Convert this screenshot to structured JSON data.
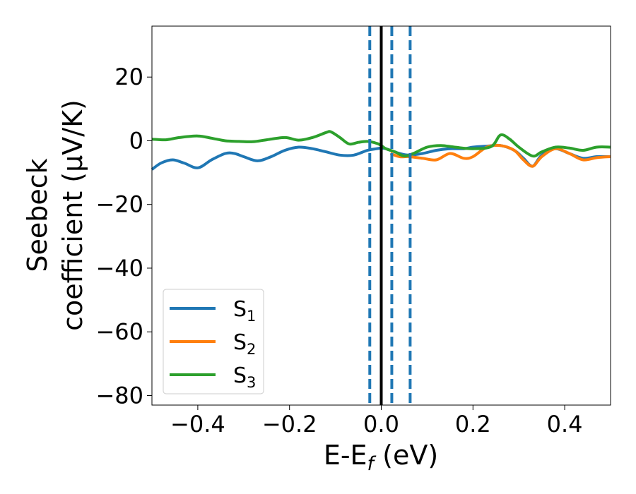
{
  "chart_data": {
    "type": "line",
    "title": "",
    "xlabel_main": "E-E",
    "xlabel_sub": "f",
    "xlabel_tail": " (eV)",
    "ylabel_line1": "Seebeck",
    "ylabel_line2": "coefficient  (μV/K)",
    "xlim": [
      -0.5,
      0.5
    ],
    "ylim": [
      -83,
      36
    ],
    "xticks": [
      -0.4,
      -0.2,
      0.0,
      0.2,
      0.4
    ],
    "xtick_labels": [
      "−0.4",
      "−0.2",
      "0.0",
      "0.2",
      "0.4"
    ],
    "yticks": [
      20,
      0,
      -20,
      -40,
      -60,
      -80
    ],
    "ytick_labels": [
      "20",
      "0",
      "−20",
      "−40",
      "−60",
      "−80"
    ],
    "vlines": [
      {
        "x": -0.025,
        "style": "dashed",
        "color": "#1f77b4"
      },
      {
        "x": 0.0,
        "style": "solid",
        "color": "#000000"
      },
      {
        "x": 0.023,
        "style": "dashed",
        "color": "#1f77b4"
      },
      {
        "x": 0.063,
        "style": "dashed",
        "color": "#1f77b4"
      }
    ],
    "legend_position": "lower-left",
    "series": [
      {
        "name": "S",
        "sub": "1",
        "color": "#1f77b4",
        "x": [
          -0.5,
          -0.48,
          -0.455,
          -0.43,
          -0.4,
          -0.37,
          -0.34,
          -0.32,
          -0.3,
          -0.27,
          -0.24,
          -0.21,
          -0.18,
          -0.15,
          -0.12,
          -0.09,
          -0.06,
          -0.03,
          -0.01,
          0.0,
          0.01,
          0.02,
          0.04,
          0.06,
          0.09,
          0.12,
          0.15,
          0.18,
          0.2,
          0.23,
          0.26,
          0.29,
          0.31,
          0.33,
          0.35,
          0.38,
          0.41,
          0.44,
          0.47,
          0.5
        ],
        "y": [
          -9,
          -7,
          -6,
          -7,
          -8.5,
          -6,
          -4,
          -4,
          -5,
          -6.3,
          -5,
          -3,
          -2,
          -2.5,
          -3.5,
          -4.5,
          -4.5,
          -3,
          -2.5,
          -2.3,
          -2.5,
          -3,
          -4,
          -4.5,
          -4,
          -3,
          -2.5,
          -2.5,
          -2,
          -1.7,
          -1.5,
          -3,
          -5.5,
          -8,
          -4.5,
          -2.5,
          -4,
          -5.5,
          -5,
          -5
        ]
      },
      {
        "name": "S",
        "sub": "2",
        "color": "#ff7f0e",
        "x": [
          0.02,
          0.04,
          0.06,
          0.09,
          0.12,
          0.15,
          0.18,
          0.2,
          0.23,
          0.26,
          0.29,
          0.31,
          0.33,
          0.35,
          0.38,
          0.41,
          0.44,
          0.47,
          0.5
        ],
        "y": [
          -4,
          -5,
          -5,
          -5.5,
          -6,
          -4,
          -5.5,
          -5,
          -2,
          -1.5,
          -3,
          -6,
          -8,
          -5,
          -2.5,
          -4,
          -6,
          -5.3,
          -5
        ]
      },
      {
        "name": "S",
        "sub": "3",
        "color": "#2ca02c",
        "x": [
          -0.5,
          -0.47,
          -0.44,
          -0.4,
          -0.37,
          -0.34,
          -0.31,
          -0.28,
          -0.25,
          -0.21,
          -0.18,
          -0.15,
          -0.12,
          -0.11,
          -0.09,
          -0.07,
          -0.05,
          -0.03,
          -0.01,
          0.0,
          0.01,
          0.03,
          0.05,
          0.07,
          0.1,
          0.13,
          0.16,
          0.2,
          0.24,
          0.26,
          0.28,
          0.3,
          0.33,
          0.35,
          0.38,
          0.41,
          0.44,
          0.47,
          0.5
        ],
        "y": [
          0.5,
          0.3,
          1,
          1.5,
          0.8,
          0,
          -0.2,
          -0.3,
          0.3,
          1,
          0.2,
          1,
          2.6,
          2.8,
          1,
          -1,
          -0.5,
          -0.2,
          -0.8,
          -1.5,
          -2.5,
          -3.5,
          -4.8,
          -4,
          -2,
          -1.5,
          -2,
          -2.5,
          -1.8,
          1.8,
          0.5,
          -2,
          -4.8,
          -3.5,
          -2,
          -2.3,
          -3,
          -2,
          -2
        ]
      }
    ]
  }
}
